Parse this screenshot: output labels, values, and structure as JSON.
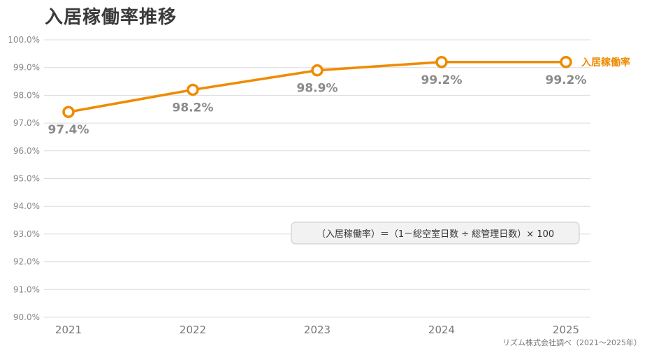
{
  "chart_data": {
    "type": "line",
    "title": "入居稼働率推移",
    "x": [
      "2021",
      "2022",
      "2023",
      "2024",
      "2025"
    ],
    "series": [
      {
        "name": "入居稼働率",
        "values": [
          97.4,
          98.2,
          98.9,
          99.2,
          99.2
        ]
      }
    ],
    "data_labels": [
      "97.4%",
      "98.2%",
      "98.9%",
      "99.2%",
      "99.2%"
    ],
    "ylim": [
      90.0,
      100.0
    ],
    "yticks": [
      "90.0%",
      "91.0%",
      "92.0%",
      "93.0%",
      "94.0%",
      "95.0%",
      "96.0%",
      "97.0%",
      "98.0%",
      "99.0%",
      "100.0%"
    ],
    "xlabel": "",
    "ylabel": "",
    "grid": true,
    "legend": "right-end-label",
    "annotation": "（入居稼働率）＝（1－総空室日数 ÷ 総管理日数）× 100",
    "source": "リズム株式会社調べ（2021～2025年）",
    "colors": {
      "line": "#ee8b00",
      "grid": "#dcdcdc",
      "annotation_bg": "#f2f2f2",
      "annotation_border": "#c8c8c8"
    }
  }
}
